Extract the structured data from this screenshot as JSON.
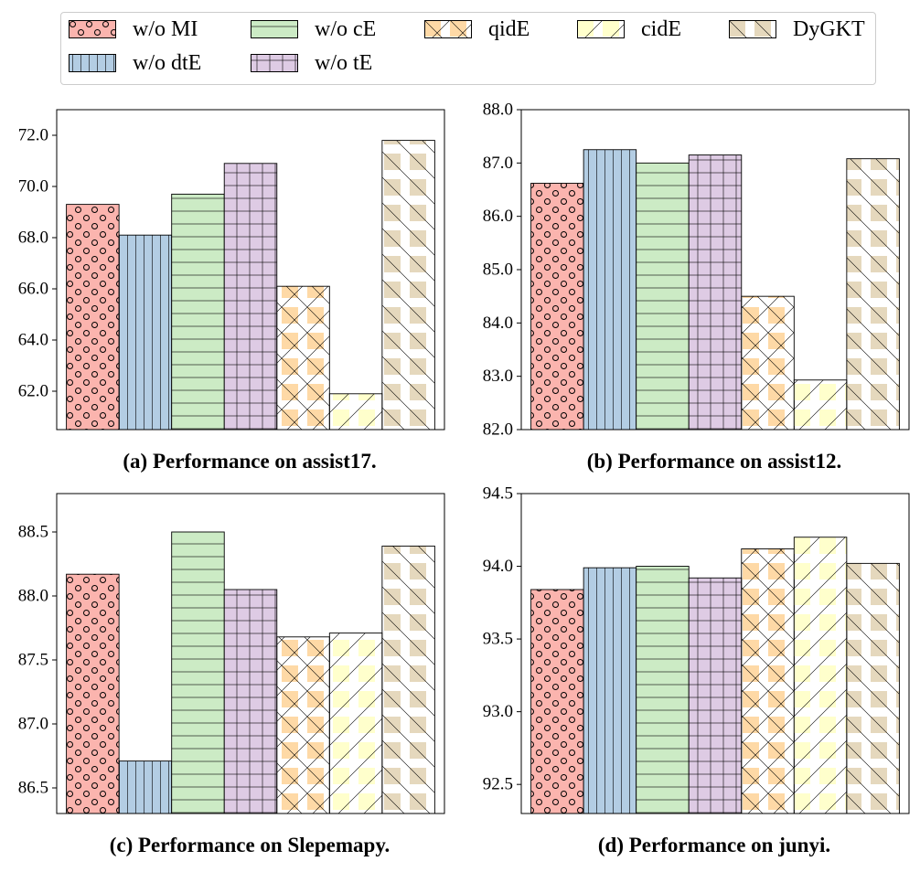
{
  "series": [
    {
      "name": "w/o MI",
      "color": "#fbb4ae",
      "pattern": "circles"
    },
    {
      "name": "w/o dtE",
      "color": "#b3cde3",
      "pattern": "vlines"
    },
    {
      "name": "w/o cE",
      "color": "#ccebc5",
      "pattern": "hlines"
    },
    {
      "name": "w/o tE",
      "color": "#decbe4",
      "pattern": "grid"
    },
    {
      "name": "qidE",
      "color": "#fed9a6",
      "pattern": "crosshatch"
    },
    {
      "name": "cidE",
      "color": "#ffffcc",
      "pattern": "slash"
    },
    {
      "name": "DyGKT",
      "color": "#e5d8bd",
      "pattern": "backslash"
    }
  ],
  "chart_data": [
    {
      "type": "bar",
      "caption": "(a) Performance on assist17.",
      "categories": [
        "w/o MI",
        "w/o dtE",
        "w/o cE",
        "w/o tE",
        "qidE",
        "cidE",
        "DyGKT"
      ],
      "values": [
        69.3,
        68.1,
        69.7,
        70.9,
        66.1,
        61.9,
        71.8
      ],
      "ylim": [
        60.5,
        73.0
      ],
      "yticks": [
        62.0,
        64.0,
        66.0,
        68.0,
        70.0,
        72.0
      ],
      "ytick_labels": [
        "62.0",
        "64.0",
        "66.0",
        "68.0",
        "70.0",
        "72.0"
      ]
    },
    {
      "type": "bar",
      "caption": "(b) Performance on assist12.",
      "categories": [
        "w/o MI",
        "w/o dtE",
        "w/o cE",
        "w/o tE",
        "qidE",
        "cidE",
        "DyGKT"
      ],
      "values": [
        86.62,
        87.25,
        87.0,
        87.15,
        84.5,
        82.93,
        87.08
      ],
      "ylim": [
        82.0,
        88.0
      ],
      "yticks": [
        82.0,
        83.0,
        84.0,
        85.0,
        86.0,
        87.0,
        88.0
      ],
      "ytick_labels": [
        "82.0",
        "83.0",
        "84.0",
        "85.0",
        "86.0",
        "87.0",
        "88.0"
      ]
    },
    {
      "type": "bar",
      "caption": "(c) Performance on Slepemapy.",
      "categories": [
        "w/o MI",
        "w/o dtE",
        "w/o cE",
        "w/o tE",
        "qidE",
        "cidE",
        "DyGKT"
      ],
      "values": [
        88.17,
        86.71,
        88.5,
        88.05,
        87.68,
        87.71,
        88.39
      ],
      "ylim": [
        86.3,
        88.8
      ],
      "yticks": [
        86.5,
        87.0,
        87.5,
        88.0,
        88.5
      ],
      "ytick_labels": [
        "86.5",
        "87.0",
        "87.5",
        "88.0",
        "88.5"
      ]
    },
    {
      "type": "bar",
      "caption": "(d) Performance on junyi.",
      "categories": [
        "w/o MI",
        "w/o dtE",
        "w/o cE",
        "w/o tE",
        "qidE",
        "cidE",
        "DyGKT"
      ],
      "values": [
        93.84,
        93.99,
        94.0,
        93.92,
        94.12,
        94.2,
        94.02
      ],
      "ylim": [
        92.3,
        94.5
      ],
      "yticks": [
        92.5,
        93.0,
        93.5,
        94.0,
        94.5
      ],
      "ytick_labels": [
        "92.5",
        "93.0",
        "93.5",
        "94.0",
        "94.5"
      ]
    }
  ]
}
